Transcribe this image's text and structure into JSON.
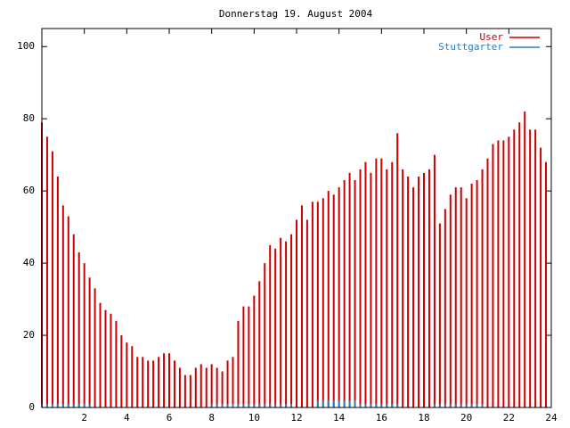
{
  "chart_data": {
    "type": "impulse",
    "title": "Donnerstag 19. August 2004",
    "x": [
      0,
      0.25,
      0.5,
      0.75,
      1,
      1.25,
      1.5,
      1.75,
      2,
      2.25,
      2.5,
      2.75,
      3,
      3.25,
      3.5,
      3.75,
      4,
      4.25,
      4.5,
      4.75,
      5,
      5.25,
      5.5,
      5.75,
      6,
      6.25,
      6.5,
      6.75,
      7,
      7.25,
      7.5,
      7.75,
      8,
      8.25,
      8.5,
      8.75,
      9,
      9.25,
      9.5,
      9.75,
      10,
      10.25,
      10.5,
      10.75,
      11,
      11.25,
      11.5,
      11.75,
      12,
      12.25,
      12.5,
      12.75,
      13,
      13.25,
      13.5,
      13.75,
      14,
      14.25,
      14.5,
      14.75,
      15,
      15.25,
      15.5,
      15.75,
      16,
      16.25,
      16.5,
      16.75,
      17,
      17.25,
      17.5,
      17.75,
      18,
      18.25,
      18.5,
      18.75,
      19,
      19.25,
      19.5,
      19.75,
      20,
      20.25,
      20.5,
      20.75,
      21,
      21.25,
      21.5,
      21.75,
      22,
      22.25,
      22.5,
      22.75,
      23,
      23.25,
      23.5,
      23.75
    ],
    "series": [
      {
        "name": "User",
        "color": "#cc0000",
        "values": [
          79,
          75,
          71,
          64,
          56,
          53,
          48,
          43,
          40,
          36,
          33,
          29,
          27,
          26,
          24,
          20,
          18,
          17,
          14,
          14,
          13,
          13,
          14,
          15,
          15,
          13,
          11,
          9,
          9,
          11,
          12,
          11,
          12,
          11,
          10,
          13,
          14,
          24,
          28,
          28,
          31,
          35,
          40,
          45,
          44,
          47,
          46,
          48,
          52,
          56,
          52,
          57,
          57,
          58,
          60,
          59,
          61,
          63,
          65,
          63,
          66,
          68,
          65,
          69,
          69,
          66,
          68,
          76,
          66,
          64,
          61,
          64,
          65,
          66,
          70,
          51,
          55,
          59,
          61,
          61,
          58,
          62,
          63,
          66,
          69,
          73,
          74,
          74,
          75,
          77,
          79,
          82,
          77,
          77,
          72,
          68
        ]
      },
      {
        "name": "Stuttgarter",
        "color": "#2a7fc0",
        "values": [
          1,
          1,
          1,
          1,
          1,
          1,
          1,
          1,
          1,
          1,
          0,
          0,
          0,
          0,
          0,
          0,
          0,
          0,
          0,
          0,
          0,
          0,
          0,
          0,
          0,
          0,
          0,
          0,
          0,
          0,
          0,
          0,
          1,
          1,
          1,
          1,
          1,
          1,
          1,
          1,
          1,
          1,
          1,
          1,
          1,
          1,
          1,
          1,
          0,
          0,
          0,
          0,
          2,
          2,
          2,
          2,
          2,
          2,
          2,
          2,
          1,
          1,
          1,
          1,
          1,
          1,
          1,
          1,
          0,
          0,
          0,
          0,
          0,
          0,
          1,
          1,
          1,
          1,
          1,
          1,
          1,
          1,
          1,
          1,
          0,
          0,
          0,
          0,
          0,
          0,
          0,
          0,
          0,
          0,
          0,
          0
        ]
      }
    ],
    "xlim": [
      0,
      24
    ],
    "xticks": [
      2,
      4,
      6,
      8,
      10,
      12,
      14,
      16,
      18,
      20,
      22,
      24
    ],
    "ylim": [
      0,
      105
    ],
    "yticks": [
      0,
      20,
      40,
      60,
      80,
      100
    ],
    "legend": "top-right"
  }
}
